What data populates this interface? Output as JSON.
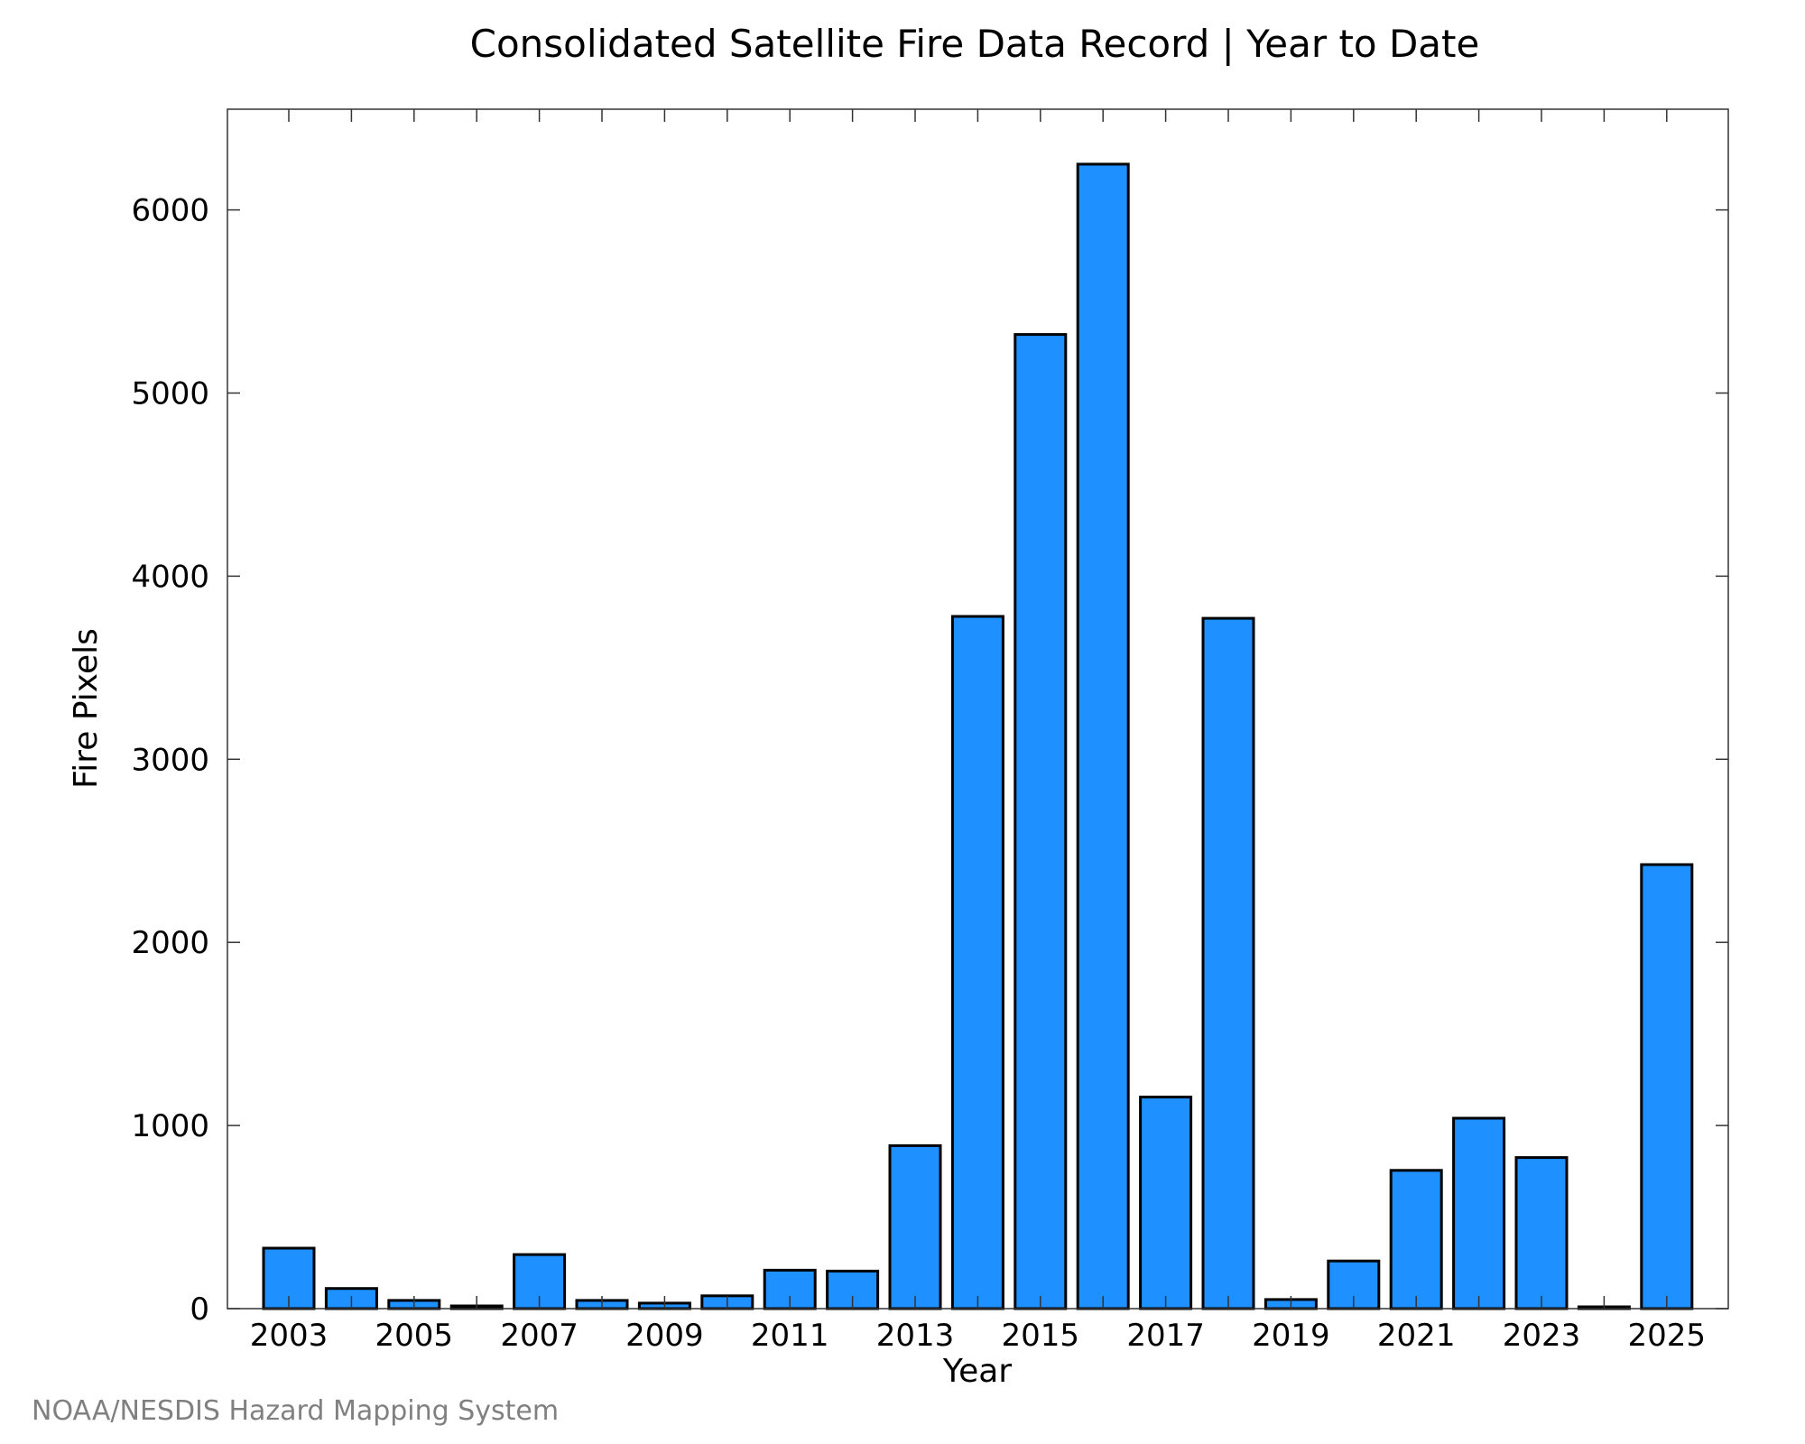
{
  "chart_data": {
    "type": "bar",
    "title": "Consolidated Satellite Fire Data Record | Year to Date",
    "xlabel": "Year",
    "ylabel": "Fire Pixels",
    "categories": [
      "2003",
      "2004",
      "2005",
      "2006",
      "2007",
      "2008",
      "2009",
      "2010",
      "2011",
      "2012",
      "2013",
      "2014",
      "2015",
      "2016",
      "2017",
      "2018",
      "2019",
      "2020",
      "2021",
      "2022",
      "2023",
      "2024",
      "2025"
    ],
    "values": [
      330,
      110,
      45,
      15,
      295,
      45,
      30,
      70,
      210,
      205,
      890,
      3780,
      5320,
      6250,
      1155,
      3770,
      50,
      260,
      755,
      1040,
      825,
      10,
      2425
    ],
    "ylim": [
      0,
      6550
    ],
    "yticks": [
      0,
      1000,
      2000,
      3000,
      4000,
      5000,
      6000
    ],
    "xtick_labels": [
      "2003",
      "2005",
      "2007",
      "2009",
      "2011",
      "2013",
      "2015",
      "2017",
      "2019",
      "2021",
      "2023",
      "2025"
    ],
    "bar_color": "#1e90ff",
    "grid": false
  },
  "credit": "NOAA/NESDIS Hazard Mapping System"
}
